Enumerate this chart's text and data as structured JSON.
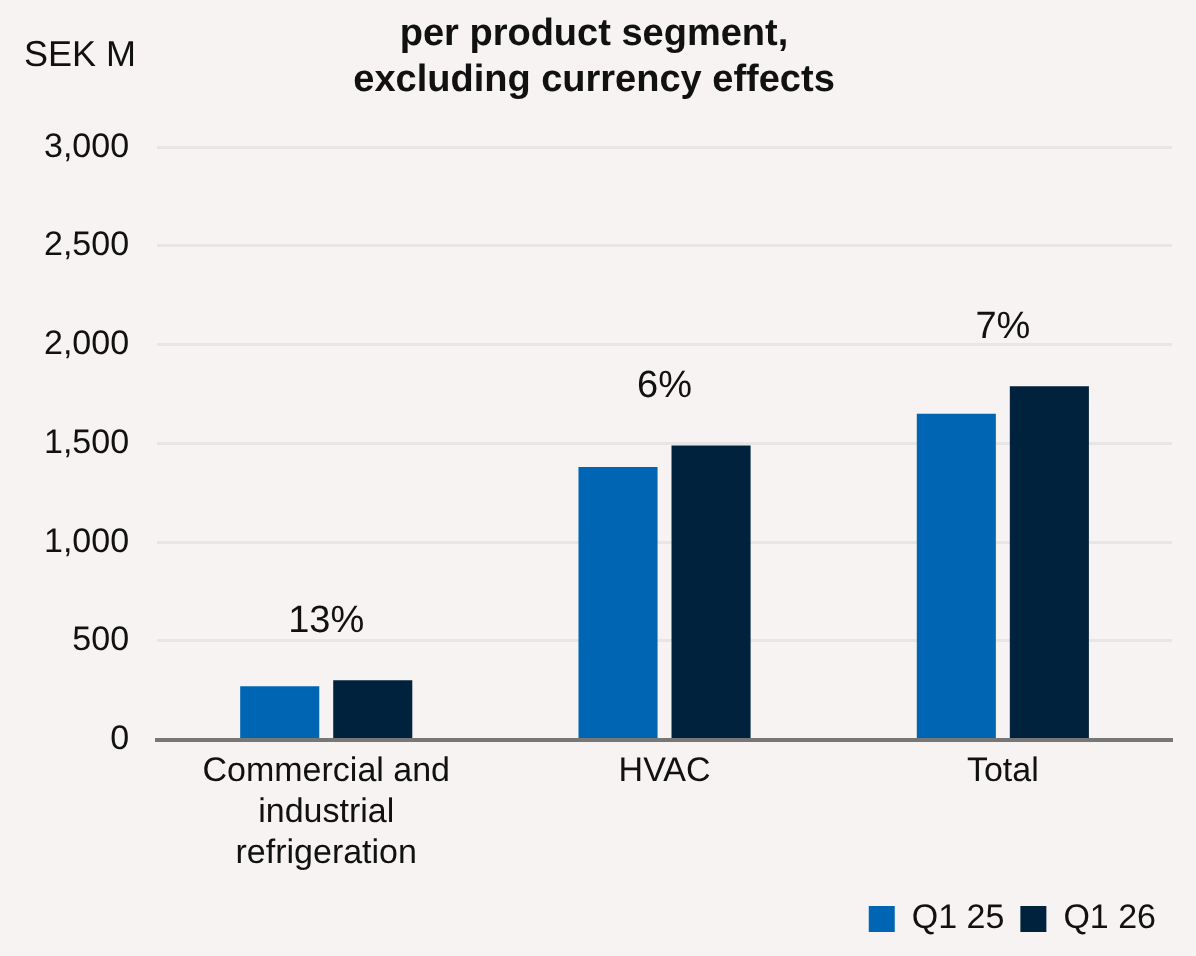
{
  "chart_data": {
    "type": "bar",
    "title": [
      "per product segment,",
      "excluding currency effects"
    ],
    "ylabel": "SEK M",
    "categories": [
      "Commercial and industrial refrigeration",
      "HVAC",
      "Total"
    ],
    "series": [
      {
        "name": "Q1 25",
        "color": "#0066b3",
        "values": [
          270,
          1380,
          1650
        ]
      },
      {
        "name": "Q1 26",
        "color": "#00223d",
        "values": [
          300,
          1490,
          1790
        ]
      }
    ],
    "ylim": [
      0,
      3000
    ],
    "yticks": [
      {
        "value": 0,
        "label": "0"
      },
      {
        "value": 500,
        "label": "500"
      },
      {
        "value": 1000,
        "label": "1,000"
      },
      {
        "value": 1500,
        "label": "1,500"
      },
      {
        "value": 2000,
        "label": "2,000"
      },
      {
        "value": 2500,
        "label": "2,500"
      },
      {
        "value": 3000,
        "label": "3,000"
      }
    ],
    "grid": "y",
    "legend": "bottom right",
    "annotations": [
      "13%",
      "6%",
      "7%"
    ]
  }
}
